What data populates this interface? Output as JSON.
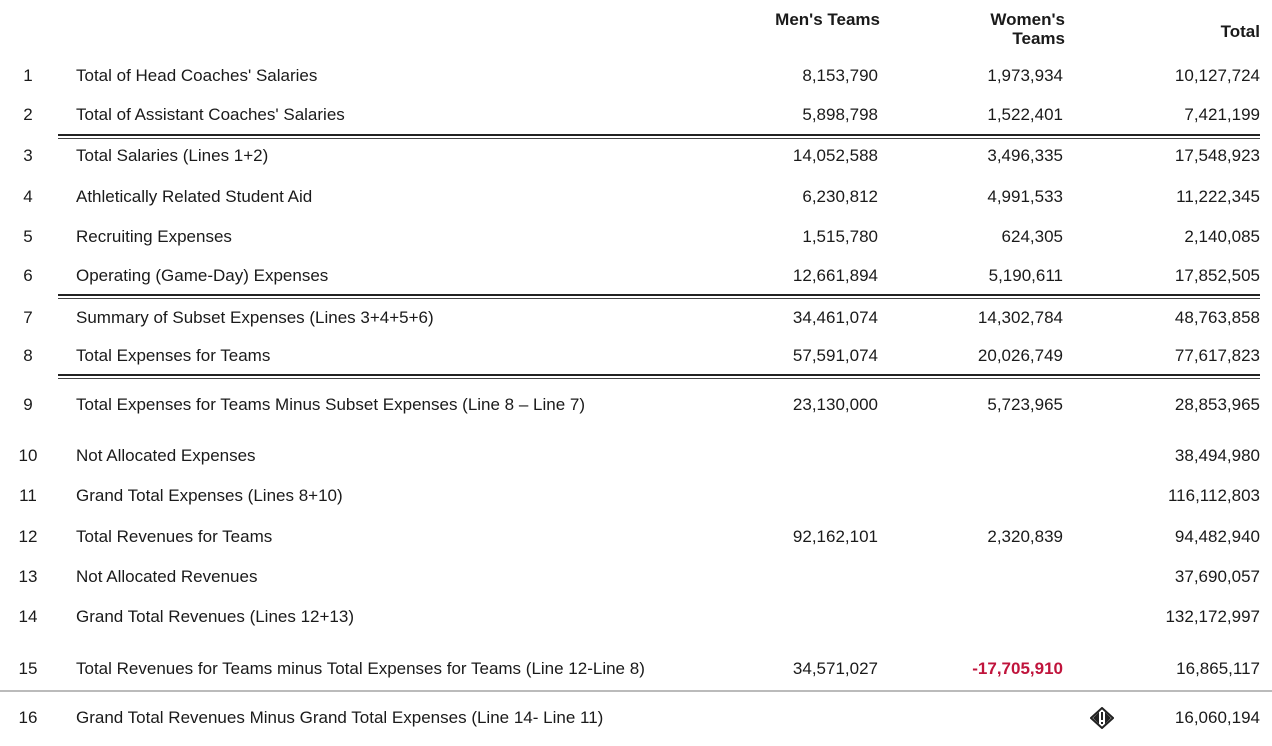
{
  "table": {
    "columns": [
      "Men's Teams",
      "Women's Teams",
      "Total"
    ],
    "rows": [
      [
        "1",
        "Total of Head Coaches' Salaries",
        "8,153,790",
        "1,973,934",
        "10,127,724"
      ],
      [
        "2",
        "Total of Assistant Coaches' Salaries",
        "5,898,798",
        "1,522,401",
        "7,421,199"
      ],
      [
        "3",
        "Total Salaries (Lines 1+2)",
        "14,052,588",
        "3,496,335",
        "17,548,923"
      ],
      [
        "4",
        "Athletically Related Student Aid",
        "6,230,812",
        "4,991,533",
        "11,222,345"
      ],
      [
        "5",
        "Recruiting Expenses",
        "1,515,780",
        "624,305",
        "2,140,085"
      ],
      [
        "6",
        "Operating (Game-Day) Expenses",
        "12,661,894",
        "5,190,611",
        "17,852,505"
      ],
      [
        "7",
        "Summary of Subset Expenses (Lines 3+4+5+6)",
        "34,461,074",
        "14,302,784",
        "48,763,858"
      ],
      [
        "8",
        "Total Expenses for Teams",
        "57,591,074",
        "20,026,749",
        "77,617,823"
      ],
      [
        "9",
        "Total Expenses for Teams Minus Subset Expenses (Line 8 – Line 7)",
        "23,130,000",
        "5,723,965",
        "28,853,965"
      ],
      [
        "10",
        "Not Allocated Expenses",
        null,
        null,
        "38,494,980"
      ],
      [
        "11",
        "Grand Total Expenses (Lines 8+10)",
        null,
        null,
        "116,112,803"
      ],
      [
        "12",
        "Total Revenues for Teams",
        "92,162,101",
        "2,320,839",
        "94,482,940"
      ],
      [
        "13",
        "Not Allocated Revenues",
        null,
        null,
        "37,690,057"
      ],
      [
        "14",
        "Grand Total Revenues (Lines 12+13)",
        null,
        null,
        "132,172,997"
      ],
      [
        "15",
        "Total Revenues for Teams minus Total Expenses for Teams (Line 12-Line 8)",
        "34,571,027",
        "-17,705,910",
        "16,865,117"
      ],
      [
        "16",
        "Grand Total Revenues Minus Grand Total Expenses (Line 14- Line 11)",
        null,
        null,
        "16,060,194"
      ]
    ]
  }
}
